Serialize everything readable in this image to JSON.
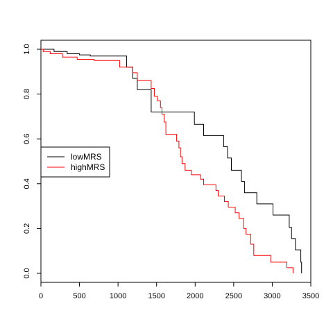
{
  "chart_data": {
    "type": "line",
    "step": true,
    "title": "",
    "xlabel": "",
    "ylabel": "",
    "xlim": [
      0,
      3500
    ],
    "ylim": [
      0,
      1
    ],
    "xticks": [
      0,
      500,
      1000,
      1500,
      2000,
      2500,
      3000,
      3500
    ],
    "xtick_labels": [
      "0",
      "500",
      "1000",
      "1500",
      "2000",
      "2500",
      "3000",
      "3500"
    ],
    "yticks": [
      0,
      0.2,
      0.4,
      0.6,
      0.8,
      1.0
    ],
    "ytick_labels": [
      "0.0",
      "0.2",
      "0.4",
      "0.6",
      "0.8",
      "1.0"
    ],
    "grid": false,
    "legend_position": "left",
    "series": [
      {
        "name": "lowMRS",
        "color": "#000000",
        "points": [
          [
            0,
            1.0
          ],
          [
            170,
            0.99
          ],
          [
            340,
            0.98
          ],
          [
            500,
            0.975
          ],
          [
            640,
            0.97
          ],
          [
            1110,
            0.92
          ],
          [
            1190,
            0.87
          ],
          [
            1250,
            0.82
          ],
          [
            1430,
            0.72
          ],
          [
            1990,
            0.665
          ],
          [
            2110,
            0.615
          ],
          [
            2370,
            0.565
          ],
          [
            2420,
            0.515
          ],
          [
            2470,
            0.46
          ],
          [
            2600,
            0.41
          ],
          [
            2640,
            0.36
          ],
          [
            2800,
            0.31
          ],
          [
            3010,
            0.26
          ],
          [
            3220,
            0.205
          ],
          [
            3250,
            0.155
          ],
          [
            3300,
            0.105
          ],
          [
            3370,
            0.05
          ],
          [
            3380,
            0.0
          ]
        ],
        "end_x": 3380
      },
      {
        "name": "highMRS",
        "color": "#ff0000",
        "points": [
          [
            0,
            1.0
          ],
          [
            30,
            0.99
          ],
          [
            120,
            0.98
          ],
          [
            280,
            0.965
          ],
          [
            470,
            0.955
          ],
          [
            690,
            0.95
          ],
          [
            1020,
            0.92
          ],
          [
            1190,
            0.895
          ],
          [
            1250,
            0.86
          ],
          [
            1430,
            0.825
          ],
          [
            1470,
            0.79
          ],
          [
            1510,
            0.77
          ],
          [
            1550,
            0.74
          ],
          [
            1570,
            0.71
          ],
          [
            1600,
            0.675
          ],
          [
            1620,
            0.62
          ],
          [
            1760,
            0.59
          ],
          [
            1790,
            0.56
          ],
          [
            1810,
            0.52
          ],
          [
            1830,
            0.49
          ],
          [
            1870,
            0.46
          ],
          [
            1950,
            0.44
          ],
          [
            2070,
            0.42
          ],
          [
            2110,
            0.395
          ],
          [
            2270,
            0.37
          ],
          [
            2300,
            0.345
          ],
          [
            2380,
            0.32
          ],
          [
            2430,
            0.295
          ],
          [
            2520,
            0.27
          ],
          [
            2570,
            0.245
          ],
          [
            2630,
            0.2
          ],
          [
            2660,
            0.175
          ],
          [
            2720,
            0.13
          ],
          [
            2760,
            0.08
          ],
          [
            2980,
            0.05
          ],
          [
            3190,
            0.025
          ],
          [
            3270,
            0.0
          ]
        ],
        "end_x": 3270
      }
    ]
  }
}
